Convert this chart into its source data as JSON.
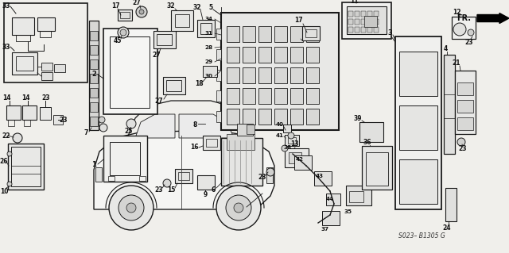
{
  "bg_color": "#f0efeb",
  "line_color": "#1a1a1a",
  "part_code": "S023– B1305 G",
  "figsize": [
    6.4,
    3.19
  ],
  "dpi": 100
}
